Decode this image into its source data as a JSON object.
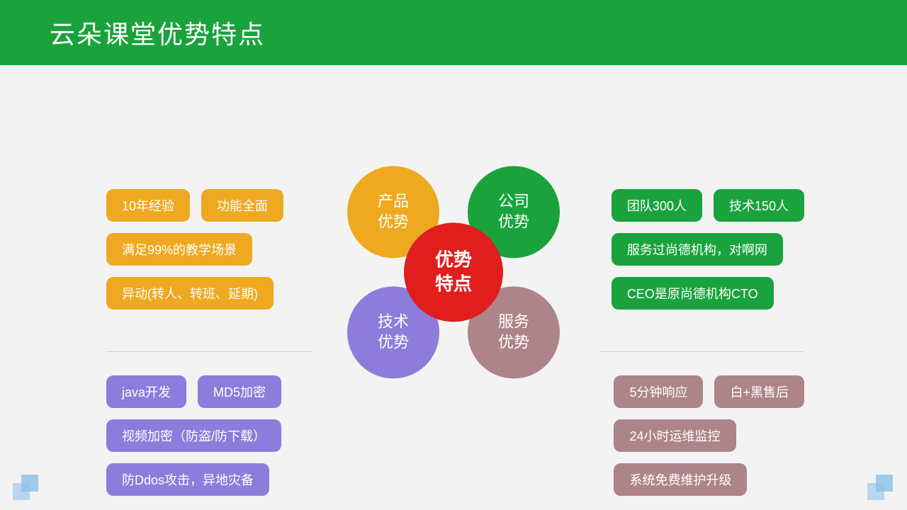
{
  "colors": {
    "header_bg": "#1aa33c",
    "page_bg": "#f3f3f3",
    "orange": "#eea921",
    "green": "#1aa33c",
    "purple": "#8d7cdc",
    "mauve": "#ad8489",
    "red": "#e01e1e",
    "divider": "#d0d0d0",
    "deco": "#8fc3e8"
  },
  "header": {
    "title": "云朵课堂优势特点"
  },
  "center": {
    "label_line1": "优势",
    "label_line2": "特点",
    "color": "#e01e1e"
  },
  "petals": {
    "tl": {
      "line1": "产品",
      "line2": "优势",
      "color": "#eea921"
    },
    "tr": {
      "line1": "公司",
      "line2": "优势",
      "color": "#1aa33c"
    },
    "bl": {
      "line1": "技术",
      "line2": "优势",
      "color": "#8d7cdc"
    },
    "br": {
      "line1": "服务",
      "line2": "优势",
      "color": "#ad8489"
    }
  },
  "quads": {
    "tl": {
      "color": "#eea921",
      "rows": [
        [
          "10年经验",
          "功能全面"
        ],
        [
          "满足99%的教学场景"
        ],
        [
          "异动(转人、转班、延期)"
        ]
      ]
    },
    "tr": {
      "color": "#1aa33c",
      "rows": [
        [
          "团队300人",
          "技术150人"
        ],
        [
          "服务过尚德机构，对啊网"
        ],
        [
          "CEO是原尚德机构CTO"
        ]
      ]
    },
    "bl": {
      "color": "#8d7cdc",
      "rows": [
        [
          "java开发",
          "MD5加密"
        ],
        [
          "视频加密（防盗/防下载）"
        ],
        [
          "防Ddos攻击，异地灾备"
        ]
      ]
    },
    "br": {
      "color": "#ad8489",
      "rows": [
        [
          "5分钟响应",
          "白+黑售后"
        ],
        [
          "24小时运维监控"
        ],
        [
          "系统免费维护升级"
        ]
      ]
    }
  }
}
